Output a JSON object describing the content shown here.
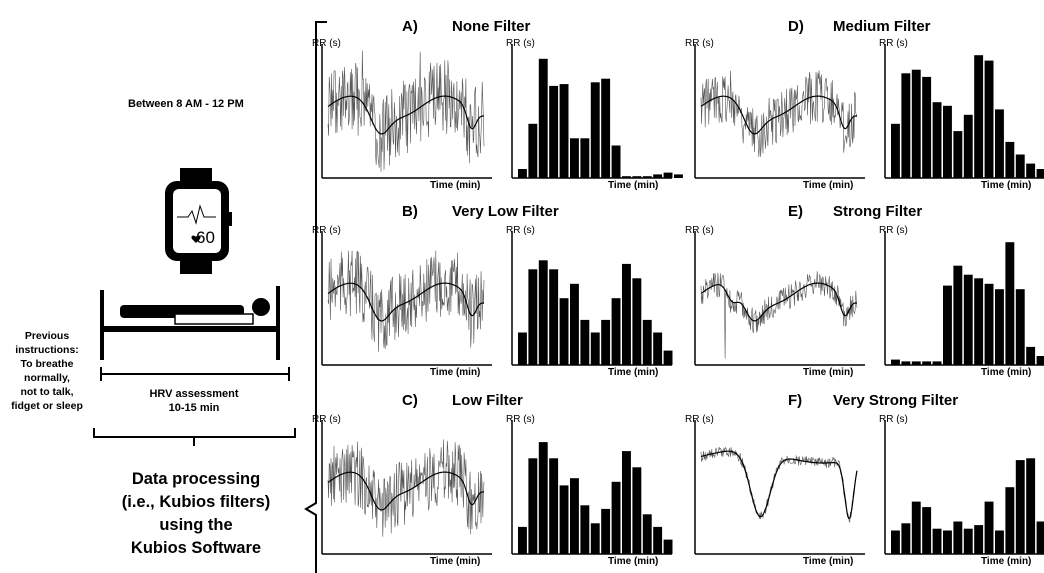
{
  "left": {
    "time_window": "Between 8 AM - 12 PM",
    "heart_rate": "60",
    "instructions": [
      "Previous",
      "instructions:",
      "To breathe",
      "normally,",
      "not to talk,",
      "fidget or sleep"
    ],
    "assessment": [
      "HRV assessment",
      "10-15 min"
    ],
    "processing": [
      "Data processing",
      "(i.e., Kubios filters)",
      "using the",
      "Kubios Software"
    ]
  },
  "panels": [
    {
      "letter": "A)",
      "title": "None Filter"
    },
    {
      "letter": "B)",
      "title": "Very Low Filter"
    },
    {
      "letter": "C)",
      "title": "Low Filter"
    },
    {
      "letter": "D)",
      "title": "Medium Filter"
    },
    {
      "letter": "E)",
      "title": "Strong Filter"
    },
    {
      "letter": "F)",
      "title": "Very Strong Filter"
    }
  ],
  "axis": {
    "y": "RR (s)",
    "x": "Time (min)"
  },
  "chart_data": [
    {
      "type": "bar",
      "panel": "A",
      "values": [
        0.5,
        3,
        6.6,
        5.1,
        5.2,
        2.2,
        2.2,
        5.3,
        5.5,
        1.8,
        0.1,
        0.1,
        0.1,
        0.2,
        0.3,
        0.2
      ]
    },
    {
      "type": "bar",
      "panel": "B",
      "values": [
        1.8,
        5.3,
        5.8,
        5.3,
        3.7,
        4.5,
        2.5,
        1.8,
        2.5,
        3.7,
        5.6,
        4.8,
        2.5,
        1.8,
        0.8
      ]
    },
    {
      "type": "bar",
      "panel": "C",
      "values": [
        1.5,
        5.3,
        6.2,
        5.3,
        3.8,
        4.2,
        2.7,
        1.7,
        2.5,
        4.0,
        5.7,
        4.8,
        2.2,
        1.5,
        0.8
      ]
    },
    {
      "type": "bar",
      "panel": "D",
      "values": [
        3.0,
        5.8,
        6.0,
        5.6,
        4.2,
        4.0,
        2.6,
        3.5,
        6.8,
        6.5,
        3.8,
        2.0,
        1.3,
        0.8,
        0.5
      ]
    },
    {
      "type": "bar",
      "panel": "E",
      "values": [
        0.3,
        0.2,
        0.2,
        0.2,
        0.2,
        4.4,
        5.5,
        5.0,
        4.8,
        4.5,
        4.2,
        6.8,
        4.2,
        1.0,
        0.5
      ]
    },
    {
      "type": "bar",
      "panel": "F",
      "values": [
        1.3,
        1.7,
        2.9,
        2.6,
        1.4,
        1.3,
        1.8,
        1.4,
        1.6,
        2.9,
        1.3,
        3.7,
        5.2,
        5.3,
        1.8
      ]
    }
  ]
}
